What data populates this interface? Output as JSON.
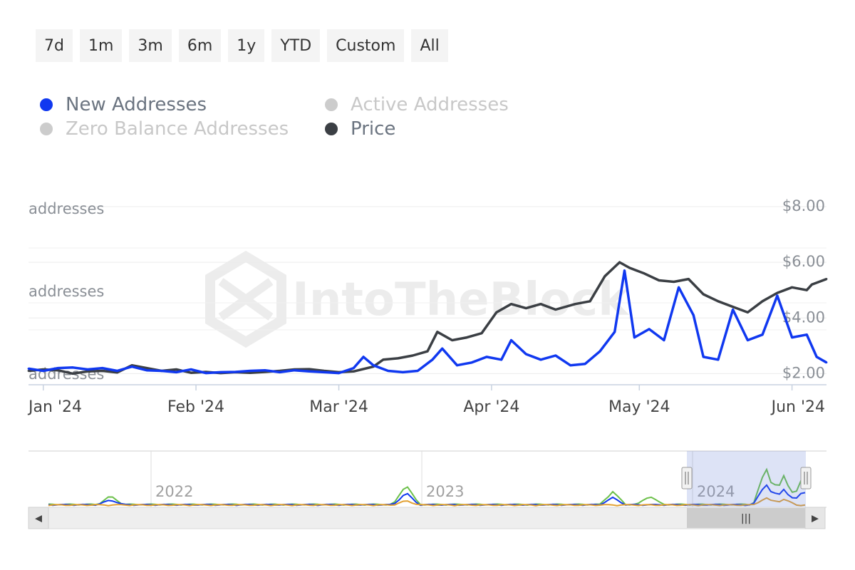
{
  "range_buttons": [
    "7d",
    "1m",
    "3m",
    "6m",
    "1y",
    "YTD",
    "Custom",
    "All"
  ],
  "legend": [
    {
      "name": "New Addresses",
      "color": "#1038f0",
      "active": true
    },
    {
      "name": "Active Addresses",
      "color": "#cccccc",
      "active": false
    },
    {
      "name": "Zero Balance Addresses",
      "color": "#cccccc",
      "active": false
    },
    {
      "name": "Price",
      "color": "#3b3f44",
      "active": true
    }
  ],
  "watermark": "IntoTheBlock",
  "chart_data": {
    "type": "line",
    "y_left_labels": [
      "addresses",
      "addresses",
      "addresses"
    ],
    "y_right_ticks": [
      "$8.00",
      "$6.00",
      "$4.00",
      "$2.00"
    ],
    "y_right_range": [
      1.6,
      8.0
    ],
    "x_ticks": [
      "Jan '24",
      "Feb '24",
      "Mar '24",
      "Apr '24",
      "May '24",
      "Jun '24"
    ],
    "x_range": [
      "2023-12-29",
      "2024-06-08"
    ],
    "grid": true,
    "legend_position": "top-left",
    "series": [
      {
        "name": "Price",
        "color": "#3b3f44",
        "axis": "right",
        "points": [
          [
            "2023-12-29",
            2.1
          ],
          [
            "2024-01-01",
            2.15
          ],
          [
            "2024-01-04",
            2.12
          ],
          [
            "2024-01-07",
            2.0
          ],
          [
            "2024-01-10",
            2.08
          ],
          [
            "2024-01-13",
            2.1
          ],
          [
            "2024-01-16",
            2.04
          ],
          [
            "2024-01-19",
            2.3
          ],
          [
            "2024-01-22",
            2.2
          ],
          [
            "2024-01-25",
            2.1
          ],
          [
            "2024-01-28",
            2.15
          ],
          [
            "2024-01-31",
            2.03
          ],
          [
            "2024-02-03",
            2.06
          ],
          [
            "2024-02-06",
            2.02
          ],
          [
            "2024-02-09",
            2.05
          ],
          [
            "2024-02-12",
            2.03
          ],
          [
            "2024-02-15",
            2.06
          ],
          [
            "2024-02-18",
            2.1
          ],
          [
            "2024-02-21",
            2.15
          ],
          [
            "2024-02-24",
            2.16
          ],
          [
            "2024-02-27",
            2.1
          ],
          [
            "2024-03-01",
            2.05
          ],
          [
            "2024-03-04",
            2.08
          ],
          [
            "2024-03-08",
            2.25
          ],
          [
            "2024-03-10",
            2.5
          ],
          [
            "2024-03-13",
            2.55
          ],
          [
            "2024-03-16",
            2.65
          ],
          [
            "2024-03-19",
            2.8
          ],
          [
            "2024-03-21",
            3.5
          ],
          [
            "2024-03-24",
            3.2
          ],
          [
            "2024-03-27",
            3.3
          ],
          [
            "2024-03-30",
            3.45
          ],
          [
            "2024-04-02",
            4.2
          ],
          [
            "2024-04-05",
            4.5
          ],
          [
            "2024-04-08",
            4.35
          ],
          [
            "2024-04-11",
            4.5
          ],
          [
            "2024-04-14",
            4.3
          ],
          [
            "2024-04-18",
            4.5
          ],
          [
            "2024-04-21",
            4.6
          ],
          [
            "2024-04-24",
            5.5
          ],
          [
            "2024-04-27",
            6.0
          ],
          [
            "2024-04-29",
            5.8
          ],
          [
            "2024-05-02",
            5.6
          ],
          [
            "2024-05-05",
            5.35
          ],
          [
            "2024-05-08",
            5.3
          ],
          [
            "2024-05-11",
            5.4
          ],
          [
            "2024-05-14",
            4.85
          ],
          [
            "2024-05-17",
            4.6
          ],
          [
            "2024-05-20",
            4.4
          ],
          [
            "2024-05-23",
            4.2
          ],
          [
            "2024-05-26",
            4.6
          ],
          [
            "2024-05-29",
            4.9
          ],
          [
            "2024-06-01",
            5.1
          ],
          [
            "2024-06-04",
            5.0
          ],
          [
            "2024-06-05",
            5.2
          ],
          [
            "2024-06-08",
            5.4
          ]
        ]
      },
      {
        "name": "New Addresses",
        "color": "#1038f0",
        "axis": "left",
        "points": [
          [
            "2023-12-29",
            2.18
          ],
          [
            "2024-01-01",
            2.1
          ],
          [
            "2024-01-04",
            2.2
          ],
          [
            "2024-01-07",
            2.22
          ],
          [
            "2024-01-10",
            2.15
          ],
          [
            "2024-01-13",
            2.2
          ],
          [
            "2024-01-16",
            2.1
          ],
          [
            "2024-01-19",
            2.25
          ],
          [
            "2024-01-22",
            2.12
          ],
          [
            "2024-01-25",
            2.1
          ],
          [
            "2024-01-28",
            2.05
          ],
          [
            "2024-01-31",
            2.15
          ],
          [
            "2024-02-03",
            2.02
          ],
          [
            "2024-02-06",
            2.05
          ],
          [
            "2024-02-09",
            2.06
          ],
          [
            "2024-02-12",
            2.1
          ],
          [
            "2024-02-15",
            2.12
          ],
          [
            "2024-02-18",
            2.05
          ],
          [
            "2024-02-21",
            2.12
          ],
          [
            "2024-02-24",
            2.08
          ],
          [
            "2024-02-27",
            2.05
          ],
          [
            "2024-03-01",
            2.02
          ],
          [
            "2024-03-04",
            2.2
          ],
          [
            "2024-03-06",
            2.6
          ],
          [
            "2024-03-08",
            2.3
          ],
          [
            "2024-03-11",
            2.1
          ],
          [
            "2024-03-14",
            2.05
          ],
          [
            "2024-03-17",
            2.1
          ],
          [
            "2024-03-20",
            2.5
          ],
          [
            "2024-03-22",
            2.9
          ],
          [
            "2024-03-25",
            2.3
          ],
          [
            "2024-03-28",
            2.4
          ],
          [
            "2024-03-31",
            2.6
          ],
          [
            "2024-04-03",
            2.5
          ],
          [
            "2024-04-05",
            3.2
          ],
          [
            "2024-04-08",
            2.7
          ],
          [
            "2024-04-11",
            2.5
          ],
          [
            "2024-04-14",
            2.65
          ],
          [
            "2024-04-17",
            2.3
          ],
          [
            "2024-04-20",
            2.35
          ],
          [
            "2024-04-23",
            2.8
          ],
          [
            "2024-04-26",
            3.5
          ],
          [
            "2024-04-28",
            5.7
          ],
          [
            "2024-04-30",
            3.3
          ],
          [
            "2024-05-03",
            3.6
          ],
          [
            "2024-05-06",
            3.2
          ],
          [
            "2024-05-09",
            5.1
          ],
          [
            "2024-05-12",
            4.1
          ],
          [
            "2024-05-14",
            2.6
          ],
          [
            "2024-05-17",
            2.5
          ],
          [
            "2024-05-20",
            4.3
          ],
          [
            "2024-05-23",
            3.2
          ],
          [
            "2024-05-26",
            3.4
          ],
          [
            "2024-05-29",
            4.8
          ],
          [
            "2024-06-01",
            3.3
          ],
          [
            "2024-06-04",
            3.4
          ],
          [
            "2024-06-06",
            2.6
          ],
          [
            "2024-06-08",
            2.4
          ]
        ]
      }
    ]
  },
  "navigator": {
    "year_labels": [
      "2022",
      "2023",
      "2024"
    ],
    "series_colors": [
      "#6cc04a",
      "#1038f0",
      "#e2a032"
    ],
    "handle_glyph": "|||",
    "scroll_left_glyph": "◀",
    "scroll_right_glyph": "▶"
  }
}
